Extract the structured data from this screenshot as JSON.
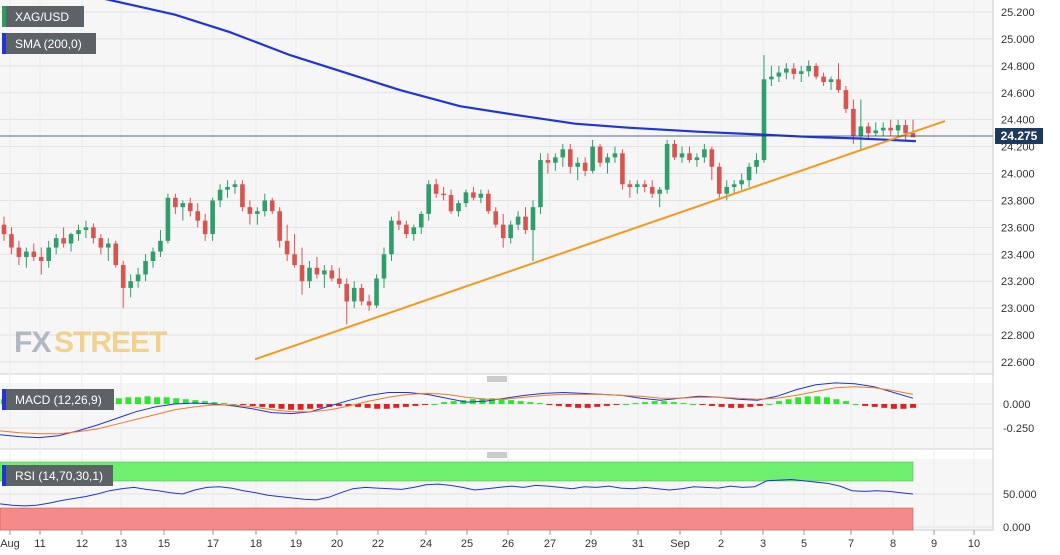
{
  "chart_data": [
    {
      "type": "candlestick",
      "symbol": "XAG/USD",
      "overlay": "SMA (200,0)",
      "last_price": "24.275",
      "ylim": [
        22.5,
        25.3
      ],
      "y_ticks": [
        "25.200",
        "25.000",
        "24.800",
        "24.600",
        "24.400",
        "24.200",
        "24.000",
        "23.800",
        "23.600",
        "23.400",
        "23.200",
        "23.000",
        "22.800",
        "22.600"
      ],
      "x_ticks": [
        "Aug",
        "11",
        "12",
        "13",
        "15",
        "17",
        "18",
        "19",
        "20",
        "22",
        "24",
        "25",
        "26",
        "27",
        "29",
        "31",
        "Sep",
        "2",
        "3",
        "5",
        "7",
        "8",
        "9",
        "10"
      ],
      "candles": [
        [
          23.62,
          23.68,
          23.5,
          23.55
        ],
        [
          23.55,
          23.6,
          23.4,
          23.45
        ],
        [
          23.45,
          23.5,
          23.32,
          23.38
        ],
        [
          23.38,
          23.45,
          23.3,
          23.42
        ],
        [
          23.42,
          23.48,
          23.35,
          23.38
        ],
        [
          23.38,
          23.45,
          23.25,
          23.35
        ],
        [
          23.35,
          23.5,
          23.3,
          23.45
        ],
        [
          23.45,
          23.55,
          23.4,
          23.52
        ],
        [
          23.52,
          23.6,
          23.45,
          23.48
        ],
        [
          23.48,
          23.56,
          23.42,
          23.55
        ],
        [
          23.55,
          23.62,
          23.5,
          23.58
        ],
        [
          23.58,
          23.65,
          23.52,
          23.6
        ],
        [
          23.6,
          23.63,
          23.48,
          23.52
        ],
        [
          23.52,
          23.55,
          23.4,
          23.45
        ],
        [
          23.45,
          23.52,
          23.35,
          23.48
        ],
        [
          23.48,
          23.5,
          23.3,
          23.32
        ],
        [
          23.32,
          23.35,
          23.0,
          23.15
        ],
        [
          23.15,
          23.25,
          23.08,
          23.2
        ],
        [
          23.2,
          23.3,
          23.15,
          23.25
        ],
        [
          23.25,
          23.4,
          23.2,
          23.35
        ],
        [
          23.35,
          23.45,
          23.3,
          23.42
        ],
        [
          23.42,
          23.58,
          23.38,
          23.5
        ],
        [
          23.5,
          23.85,
          23.48,
          23.82
        ],
        [
          23.82,
          23.85,
          23.7,
          23.75
        ],
        [
          23.75,
          23.8,
          23.65,
          23.78
        ],
        [
          23.78,
          23.82,
          23.68,
          23.72
        ],
        [
          23.72,
          23.78,
          23.6,
          23.65
        ],
        [
          23.65,
          23.7,
          23.5,
          23.55
        ],
        [
          23.55,
          23.82,
          23.5,
          23.8
        ],
        [
          23.8,
          23.92,
          23.75,
          23.88
        ],
        [
          23.88,
          23.95,
          23.82,
          23.9
        ],
        [
          23.9,
          23.95,
          23.85,
          23.92
        ],
        [
          23.92,
          23.95,
          23.72,
          23.75
        ],
        [
          23.75,
          23.8,
          23.62,
          23.7
        ],
        [
          23.7,
          23.75,
          23.62,
          23.72
        ],
        [
          23.72,
          23.85,
          23.68,
          23.8
        ],
        [
          23.8,
          23.82,
          23.7,
          23.72
        ],
        [
          23.72,
          23.75,
          23.45,
          23.5
        ],
        [
          23.5,
          23.62,
          23.35,
          23.4
        ],
        [
          23.4,
          23.55,
          23.3,
          23.32
        ],
        [
          23.32,
          23.45,
          23.1,
          23.2
        ],
        [
          23.2,
          23.35,
          23.15,
          23.3
        ],
        [
          23.3,
          23.38,
          23.22,
          23.25
        ],
        [
          23.25,
          23.32,
          23.15,
          23.28
        ],
        [
          23.28,
          23.32,
          23.2,
          23.22
        ],
        [
          23.22,
          23.3,
          23.15,
          23.18
        ],
        [
          23.18,
          23.22,
          22.88,
          23.05
        ],
        [
          23.05,
          23.2,
          23.0,
          23.15
        ],
        [
          23.15,
          23.18,
          23.02,
          23.05
        ],
        [
          23.05,
          23.1,
          22.98,
          23.02
        ],
        [
          23.02,
          23.25,
          23.0,
          23.22
        ],
        [
          23.22,
          23.45,
          23.15,
          23.4
        ],
        [
          23.4,
          23.68,
          23.35,
          23.65
        ],
        [
          23.65,
          23.72,
          23.58,
          23.62
        ],
        [
          23.62,
          23.65,
          23.52,
          23.55
        ],
        [
          23.55,
          23.62,
          23.5,
          23.6
        ],
        [
          23.6,
          23.72,
          23.55,
          23.7
        ],
        [
          23.7,
          23.95,
          23.65,
          23.92
        ],
        [
          23.92,
          23.96,
          23.82,
          23.85
        ],
        [
          23.85,
          23.9,
          23.8,
          23.84
        ],
        [
          23.84,
          23.88,
          23.7,
          23.72
        ],
        [
          23.72,
          23.8,
          23.68,
          23.78
        ],
        [
          23.78,
          23.88,
          23.75,
          23.86
        ],
        [
          23.86,
          23.9,
          23.8,
          23.82
        ],
        [
          23.82,
          23.88,
          23.78,
          23.85
        ],
        [
          23.85,
          23.88,
          23.7,
          23.72
        ],
        [
          23.72,
          23.75,
          23.6,
          23.62
        ],
        [
          23.62,
          23.7,
          23.45,
          23.52
        ],
        [
          23.52,
          23.65,
          23.48,
          23.62
        ],
        [
          23.62,
          23.72,
          23.58,
          23.68
        ],
        [
          23.68,
          23.75,
          23.55,
          23.58
        ],
        [
          23.58,
          23.8,
          23.35,
          23.75
        ],
        [
          23.75,
          24.15,
          23.7,
          24.1
        ],
        [
          24.1,
          24.15,
          24.0,
          24.08
        ],
        [
          24.08,
          24.15,
          24.02,
          24.12
        ],
        [
          24.12,
          24.22,
          24.05,
          24.18
        ],
        [
          24.18,
          24.22,
          24.0,
          24.05
        ],
        [
          24.05,
          24.12,
          23.95,
          24.08
        ],
        [
          24.08,
          24.12,
          23.98,
          24.02
        ],
        [
          24.02,
          24.25,
          24.0,
          24.2
        ],
        [
          24.2,
          24.22,
          24.05,
          24.08
        ],
        [
          24.08,
          24.15,
          24.0,
          24.12
        ],
        [
          24.12,
          24.2,
          24.08,
          24.15
        ],
        [
          24.15,
          24.18,
          23.88,
          23.92
        ],
        [
          23.92,
          23.95,
          23.82,
          23.9
        ],
        [
          23.9,
          23.95,
          23.85,
          23.92
        ],
        [
          23.92,
          23.95,
          23.86,
          23.9
        ],
        [
          23.9,
          23.95,
          23.82,
          23.85
        ],
        [
          23.85,
          23.9,
          23.75,
          23.88
        ],
        [
          23.88,
          24.25,
          23.85,
          24.22
        ],
        [
          24.22,
          24.25,
          24.1,
          24.12
        ],
        [
          24.12,
          24.2,
          24.08,
          24.15
        ],
        [
          24.15,
          24.2,
          24.08,
          24.1
        ],
        [
          24.1,
          24.15,
          24.05,
          24.12
        ],
        [
          24.12,
          24.22,
          24.08,
          24.18
        ],
        [
          24.18,
          24.2,
          23.95,
          24.05
        ],
        [
          24.05,
          24.08,
          23.82,
          23.85
        ],
        [
          23.85,
          23.95,
          23.8,
          23.9
        ],
        [
          23.9,
          23.95,
          23.85,
          23.92
        ],
        [
          23.92,
          24.0,
          23.88,
          23.95
        ],
        [
          23.95,
          24.08,
          23.9,
          24.05
        ],
        [
          24.05,
          24.15,
          24.0,
          24.1
        ],
        [
          24.1,
          24.88,
          24.08,
          24.7
        ],
        [
          24.7,
          24.8,
          24.65,
          24.72
        ],
        [
          24.72,
          24.8,
          24.68,
          24.75
        ],
        [
          24.75,
          24.82,
          24.7,
          24.78
        ],
        [
          24.78,
          24.82,
          24.7,
          24.74
        ],
        [
          24.74,
          24.8,
          24.68,
          24.76
        ],
        [
          24.76,
          24.84,
          24.72,
          24.8
        ],
        [
          24.8,
          24.82,
          24.7,
          24.72
        ],
        [
          24.72,
          24.75,
          24.65,
          24.68
        ],
        [
          24.68,
          24.72,
          24.62,
          24.7
        ],
        [
          24.7,
          24.82,
          24.6,
          24.62
        ],
        [
          24.62,
          24.65,
          24.45,
          24.48
        ],
        [
          24.48,
          24.55,
          24.22,
          24.28
        ],
        [
          24.28,
          24.55,
          24.18,
          24.35
        ],
        [
          24.35,
          24.38,
          24.25,
          24.3
        ],
        [
          24.3,
          24.38,
          24.28,
          24.32
        ],
        [
          24.32,
          24.38,
          24.28,
          24.34
        ],
        [
          24.34,
          24.4,
          24.28,
          24.32
        ],
        [
          24.32,
          24.4,
          24.28,
          24.36
        ],
        [
          24.36,
          24.4,
          24.25,
          24.3
        ],
        [
          24.3,
          24.4,
          24.28,
          24.27
        ]
      ],
      "sma_200": [
        [
          0,
          25.45
        ],
        [
          55,
          25.38
        ],
        [
          115,
          25.28
        ],
        [
          175,
          25.18
        ],
        [
          230,
          25.05
        ],
        [
          290,
          24.88
        ],
        [
          345,
          24.75
        ],
        [
          400,
          24.62
        ],
        [
          460,
          24.5
        ],
        [
          520,
          24.43
        ],
        [
          575,
          24.37
        ],
        [
          630,
          24.34
        ],
        [
          700,
          24.31
        ],
        [
          760,
          24.29
        ],
        [
          815,
          24.27
        ],
        [
          860,
          24.26
        ],
        [
          916,
          24.24
        ]
      ],
      "trendline": [
        [
          255,
          22.62
        ],
        [
          945,
          24.39
        ]
      ]
    },
    {
      "type": "macd",
      "label": "MACD (12,26,9)",
      "y_ticks": [
        "0.000",
        "-0.250"
      ],
      "histogram": [
        0.05,
        0.06,
        0.07,
        0.07,
        0.08,
        0.08,
        0.08,
        0.07,
        0.06,
        0.06,
        0.05,
        0.05,
        0.06,
        0.07,
        0.07,
        0.08,
        0.07,
        0.07,
        0.06,
        0.05,
        0.04,
        0.03,
        0.02,
        0.01,
        0.0,
        -0.01,
        -0.02,
        -0.03,
        -0.04,
        -0.05,
        -0.06,
        -0.06,
        -0.05,
        -0.04,
        -0.03,
        -0.02,
        -0.02,
        -0.03,
        -0.04,
        -0.05,
        -0.05,
        -0.04,
        -0.03,
        -0.02,
        -0.01,
        0.0,
        0.02,
        0.03,
        0.04,
        0.05,
        0.06,
        0.06,
        0.05,
        0.04,
        0.03,
        0.02,
        0.01,
        -0.01,
        -0.02,
        -0.03,
        -0.04,
        -0.04,
        -0.03,
        -0.02,
        -0.01,
        0.0,
        0.01,
        0.02,
        0.03,
        0.03,
        0.02,
        0.01,
        0.0,
        -0.01,
        -0.02,
        -0.03,
        -0.04,
        -0.04,
        -0.03,
        -0.02,
        0.0,
        0.03,
        0.05,
        0.07,
        0.08,
        0.08,
        0.07,
        0.05,
        0.03,
        0.0,
        -0.02,
        -0.03,
        -0.04,
        -0.05,
        -0.05,
        -0.04
      ],
      "macd_line": [
        -0.32,
        -0.34,
        -0.35,
        -0.33,
        -0.28,
        -0.22,
        -0.15,
        -0.08,
        -0.03,
        0.0,
        0.01,
        0.0,
        -0.02,
        -0.05,
        -0.09,
        -0.1,
        -0.08,
        -0.02,
        0.04,
        0.09,
        0.12,
        0.12,
        0.1,
        0.06,
        0.02,
        0.03,
        0.06,
        0.09,
        0.11,
        0.12,
        0.11,
        0.1,
        0.09,
        0.06,
        0.04,
        0.06,
        0.08,
        0.07,
        0.05,
        0.04,
        0.08,
        0.15,
        0.2,
        0.22,
        0.21,
        0.18,
        0.12,
        0.06
      ],
      "signal_line": [
        -0.28,
        -0.3,
        -0.31,
        -0.31,
        -0.29,
        -0.26,
        -0.21,
        -0.16,
        -0.11,
        -0.06,
        -0.03,
        -0.01,
        -0.01,
        -0.03,
        -0.06,
        -0.08,
        -0.08,
        -0.06,
        -0.02,
        0.03,
        0.07,
        0.1,
        0.11,
        0.1,
        0.07,
        0.05,
        0.05,
        0.07,
        0.09,
        0.1,
        0.1,
        0.1,
        0.09,
        0.08,
        0.06,
        0.06,
        0.07,
        0.07,
        0.06,
        0.05,
        0.06,
        0.09,
        0.13,
        0.17,
        0.18,
        0.17,
        0.14,
        0.1
      ]
    },
    {
      "type": "rsi",
      "label": "RSI (14,70,30,1)",
      "y_ticks": [
        "50.000",
        "0.000"
      ],
      "values": [
        35,
        33,
        32,
        33,
        36,
        40,
        43,
        46,
        50,
        55,
        58,
        60,
        57,
        55,
        52,
        50,
        56,
        60,
        61,
        59,
        55,
        52,
        48,
        46,
        44,
        42,
        41,
        45,
        52,
        58,
        60,
        59,
        58,
        57,
        60,
        64,
        65,
        63,
        60,
        56,
        58,
        60,
        62,
        60,
        63,
        62,
        60,
        58,
        61,
        60,
        62,
        59,
        58,
        60,
        58,
        56,
        58,
        61,
        60,
        59,
        62,
        60,
        61,
        70,
        71,
        72,
        70,
        68,
        66,
        62,
        55,
        54,
        55,
        54,
        52,
        50
      ]
    }
  ],
  "branding": {
    "logo": "FXSTREET"
  }
}
